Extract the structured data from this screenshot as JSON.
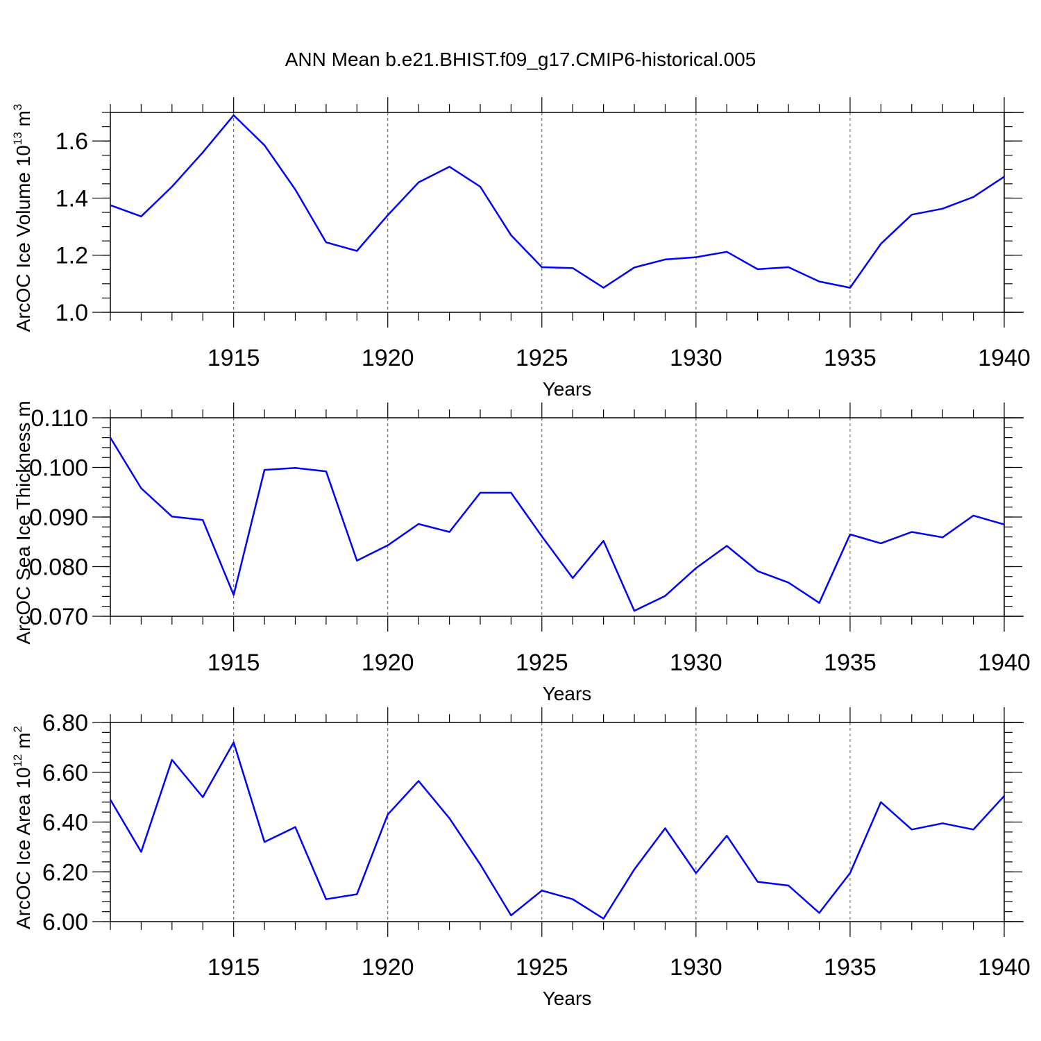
{
  "title": "ANN Mean b.e21.BHIST.f09_g17.CMIP6-historical.005",
  "colors": {
    "series": "#0000ff",
    "axis": "#000000",
    "grid": "#555555"
  },
  "chart_data": [
    {
      "type": "line",
      "id": "volume",
      "ylabel": "ArcOC Ice Volume 10",
      "ylabel_sup": "13",
      "ylabel_unit": " m",
      "ylabel_unit_sup": "3",
      "xlabel": "Years",
      "xlim": [
        1911,
        1940
      ],
      "ylim": [
        1.0,
        1.7
      ],
      "yticks": [
        1.0,
        1.2,
        1.4,
        1.6
      ],
      "ytick_labels": [
        "1.0",
        "1.2",
        "1.4",
        "1.6"
      ],
      "yminor_step": 0.05,
      "xticks": [
        1915,
        1920,
        1925,
        1930,
        1935,
        1940
      ],
      "xtick_labels": [
        "1915",
        "1920",
        "1925",
        "1930",
        "1935",
        "1940"
      ],
      "x": [
        1911,
        1912,
        1913,
        1914,
        1915,
        1916,
        1917,
        1918,
        1919,
        1920,
        1921,
        1922,
        1923,
        1924,
        1925,
        1926,
        1927,
        1928,
        1929,
        1930,
        1931,
        1932,
        1933,
        1934,
        1935,
        1936,
        1937,
        1938,
        1939,
        1940
      ],
      "values": [
        1.375,
        1.336,
        1.44,
        1.56,
        1.69,
        1.585,
        1.43,
        1.245,
        1.215,
        1.34,
        1.455,
        1.51,
        1.44,
        1.27,
        1.158,
        1.155,
        1.086,
        1.157,
        1.185,
        1.193,
        1.212,
        1.151,
        1.158,
        1.108,
        1.086,
        1.24,
        1.342,
        1.363,
        1.404,
        1.475
      ]
    },
    {
      "type": "line",
      "id": "thickness",
      "ylabel": "ArcOC Sea Ice Thickness m",
      "xlabel": "Years",
      "xlim": [
        1911,
        1940
      ],
      "ylim": [
        0.07,
        0.11
      ],
      "yticks": [
        0.07,
        0.08,
        0.09,
        0.1,
        0.11
      ],
      "ytick_labels": [
        "0.070",
        "0.080",
        "0.090",
        "0.100",
        "0.110"
      ],
      "yminor_step": 0.002,
      "xticks": [
        1915,
        1920,
        1925,
        1930,
        1935,
        1940
      ],
      "xtick_labels": [
        "1915",
        "1920",
        "1925",
        "1930",
        "1935",
        "1940"
      ],
      "x": [
        1911,
        1912,
        1913,
        1914,
        1915,
        1916,
        1917,
        1918,
        1919,
        1920,
        1921,
        1922,
        1923,
        1924,
        1925,
        1926,
        1927,
        1928,
        1929,
        1930,
        1931,
        1932,
        1933,
        1934,
        1935,
        1936,
        1937,
        1938,
        1939,
        1940
      ],
      "values": [
        0.106,
        0.0958,
        0.0901,
        0.0894,
        0.0743,
        0.0995,
        0.0999,
        0.0992,
        0.0812,
        0.0843,
        0.0886,
        0.087,
        0.0949,
        0.0949,
        0.0861,
        0.0777,
        0.0852,
        0.0711,
        0.0741,
        0.0797,
        0.0842,
        0.0791,
        0.0768,
        0.0727,
        0.0865,
        0.0847,
        0.087,
        0.0859,
        0.0903,
        0.0885
      ]
    },
    {
      "type": "line",
      "id": "area",
      "ylabel": "ArcOC Ice Area 10",
      "ylabel_sup": "12",
      "ylabel_unit": " m",
      "ylabel_unit_sup": "2",
      "xlabel": "Years",
      "xlim": [
        1911,
        1940
      ],
      "ylim": [
        6.0,
        6.8
      ],
      "yticks": [
        6.0,
        6.2,
        6.4,
        6.6,
        6.8
      ],
      "ytick_labels": [
        "6.00",
        "6.20",
        "6.40",
        "6.60",
        "6.80"
      ],
      "yminor_step": 0.04,
      "xticks": [
        1915,
        1920,
        1925,
        1930,
        1935,
        1940
      ],
      "xtick_labels": [
        "1915",
        "1920",
        "1925",
        "1930",
        "1935",
        "1940"
      ],
      "x": [
        1911,
        1912,
        1913,
        1914,
        1915,
        1916,
        1917,
        1918,
        1919,
        1920,
        1921,
        1922,
        1923,
        1924,
        1925,
        1926,
        1927,
        1928,
        1929,
        1930,
        1931,
        1932,
        1933,
        1934,
        1935,
        1936,
        1937,
        1938,
        1939,
        1940
      ],
      "values": [
        6.49,
        6.28,
        6.65,
        6.5,
        6.72,
        6.32,
        6.38,
        6.09,
        6.11,
        6.43,
        6.565,
        6.415,
        6.23,
        6.025,
        6.125,
        6.09,
        6.012,
        6.21,
        6.375,
        6.195,
        6.345,
        6.16,
        6.145,
        6.035,
        6.195,
        6.48,
        6.37,
        6.395,
        6.37,
        6.505
      ]
    }
  ]
}
